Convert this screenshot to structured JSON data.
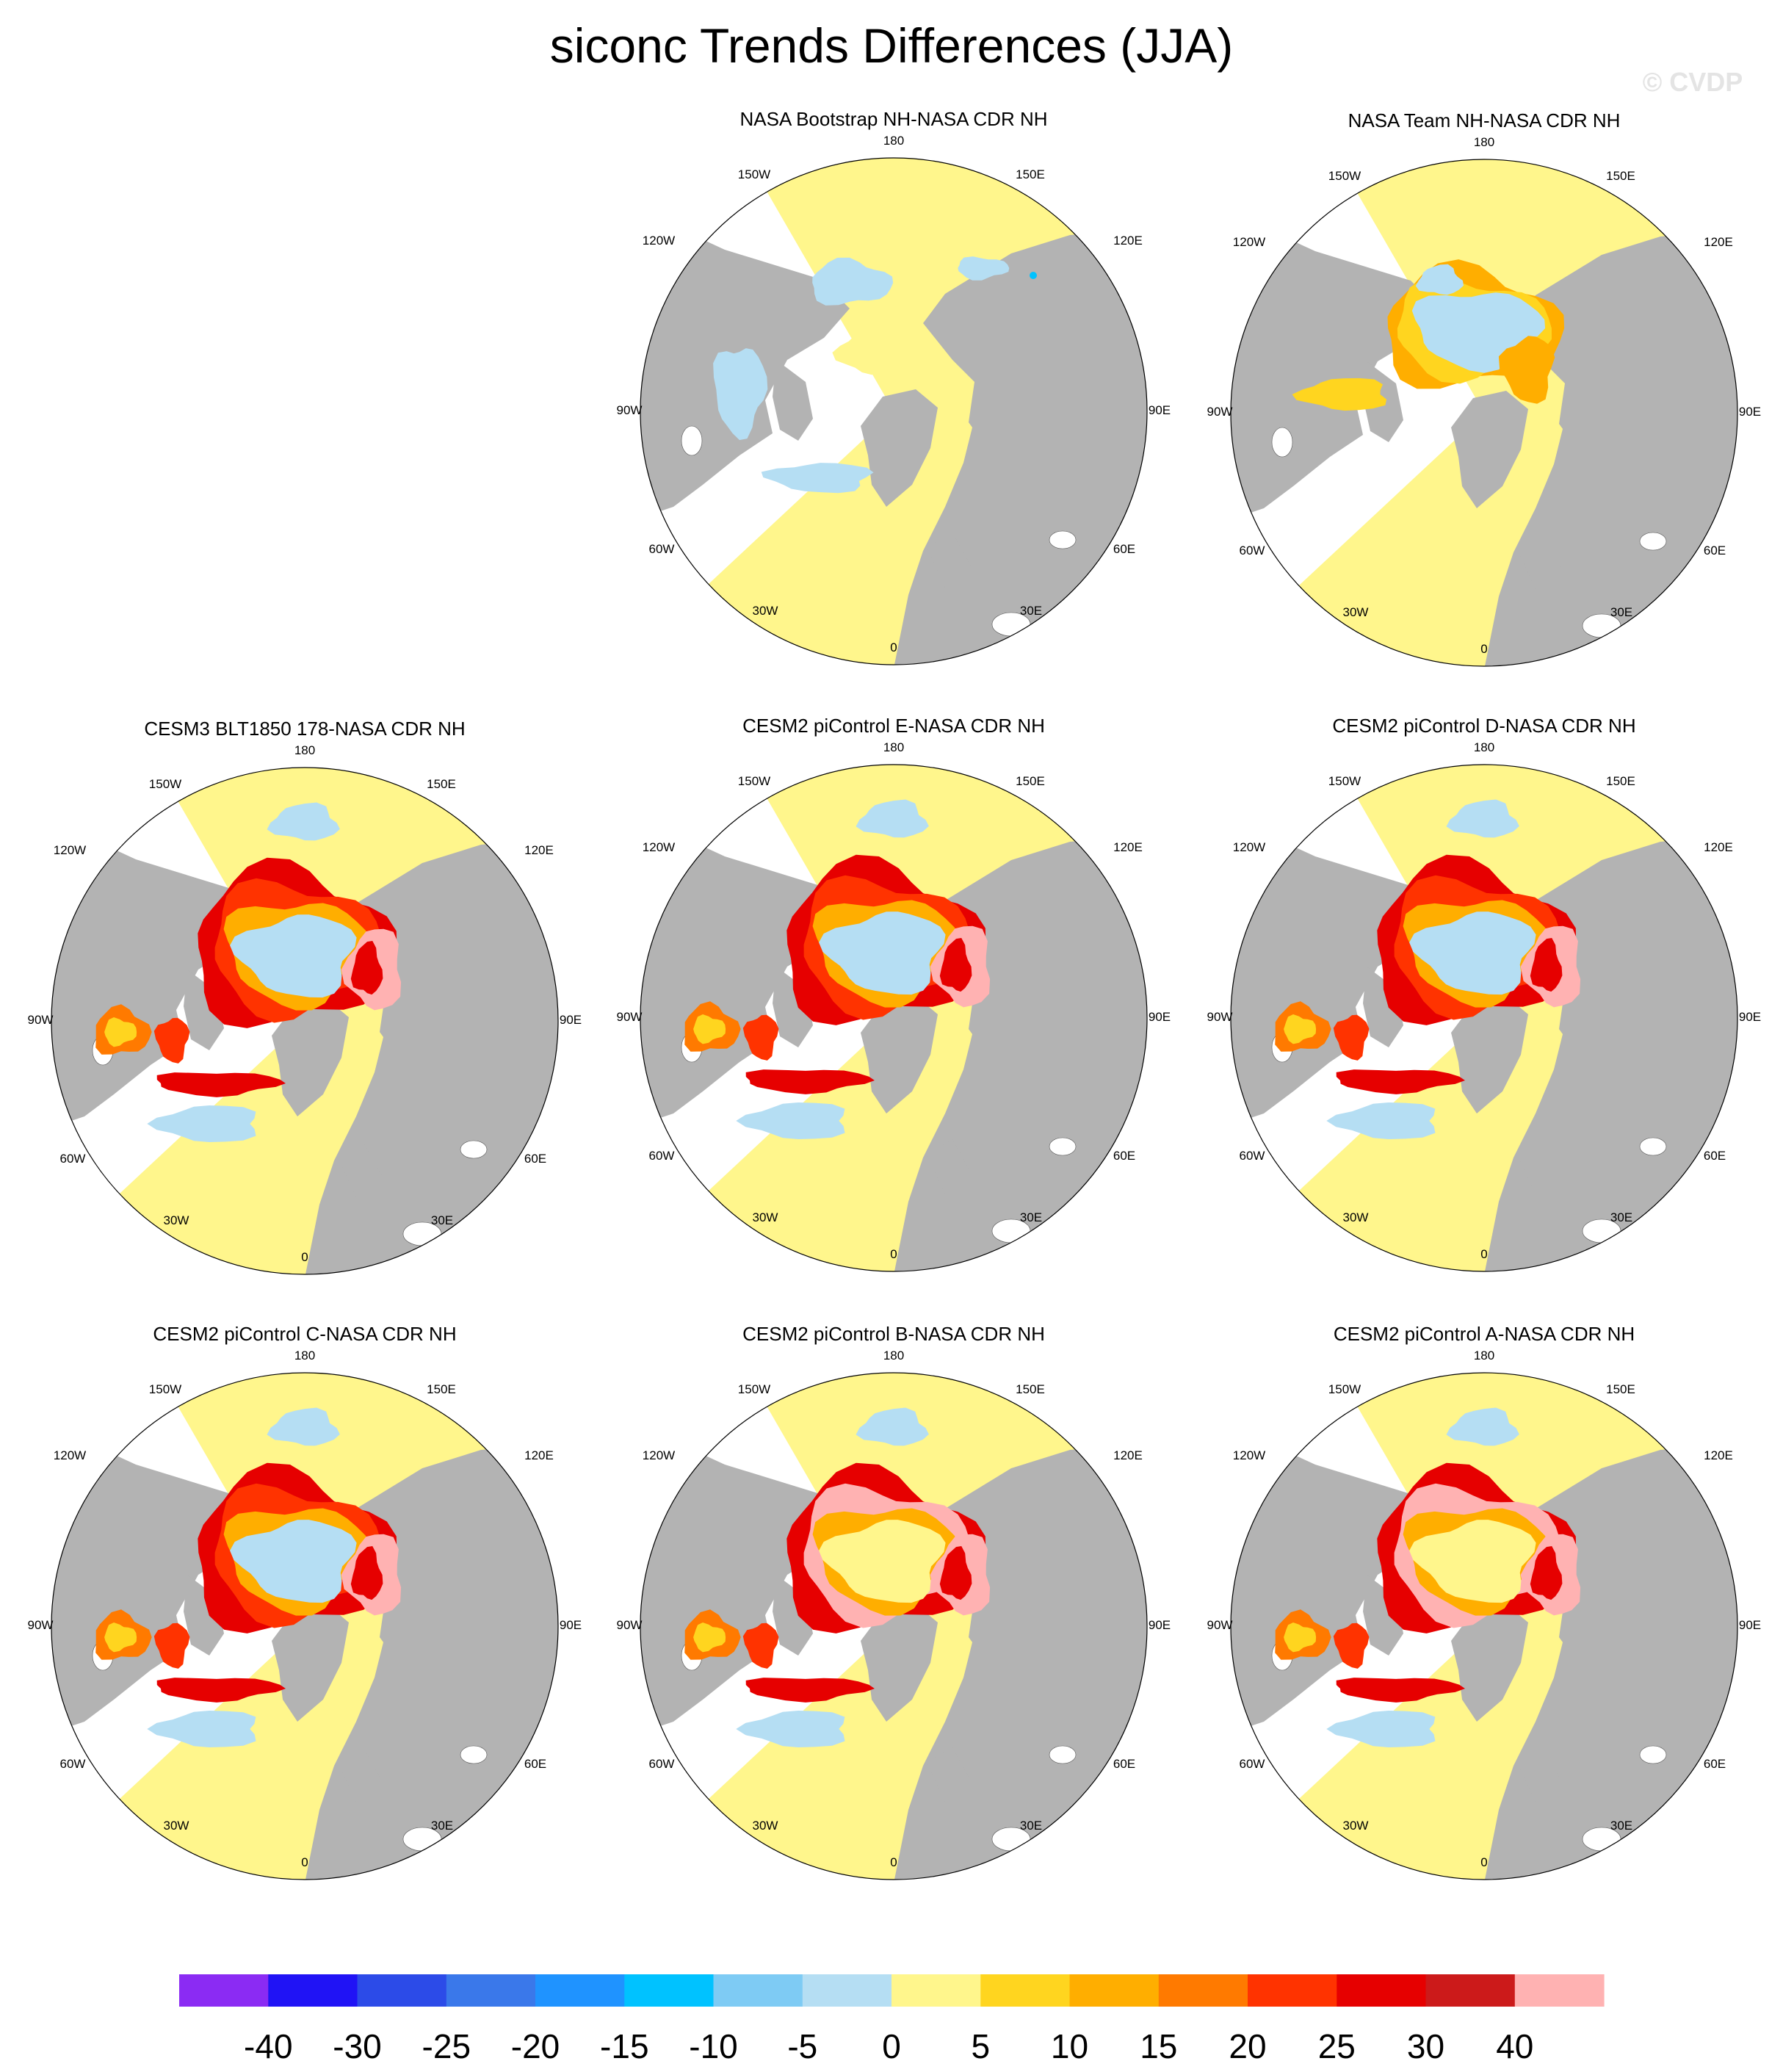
{
  "figure": {
    "title": "siconc Trends Differences (JJA)",
    "watermark": "© CVDP"
  },
  "panels": [
    {
      "title": "NASA Bootstrap NH-NASA CDR NH",
      "pattern": "bootstrap"
    },
    {
      "title": "NASA Team NH-NASA CDR NH",
      "pattern": "team"
    },
    {
      "title": "CESM3 BLT1850 178-NASA CDR NH",
      "pattern": "model"
    },
    {
      "title": "CESM2 piControl E-NASA CDR NH",
      "pattern": "model"
    },
    {
      "title": "CESM2 piControl D-NASA CDR NH",
      "pattern": "model"
    },
    {
      "title": "CESM2 piControl C-NASA CDR NH",
      "pattern": "model"
    },
    {
      "title": "CESM2 piControl B-NASA CDR NH",
      "pattern": "model_strong"
    },
    {
      "title": "CESM2 piControl A-NASA CDR NH",
      "pattern": "model_strong"
    }
  ],
  "longitude_labels": [
    "180",
    "150E",
    "120E",
    "90E",
    "60E",
    "30E",
    "0",
    "30W",
    "60W",
    "90W",
    "120W",
    "150W"
  ],
  "colorbar": {
    "colors": [
      "#8b2bf3",
      "#2013f5",
      "#2c4be8",
      "#3a78ea",
      "#1f93ff",
      "#00c2ff",
      "#7ecbf4",
      "#b5def3",
      "#fff68c",
      "#ffd51f",
      "#ffae00",
      "#ff7a00",
      "#ff3300",
      "#e60000",
      "#cc1a1a",
      "#ffb2b2"
    ],
    "labels": [
      "-40",
      "-30",
      "-25",
      "-20",
      "-15",
      "-10",
      "-5",
      "0",
      "5",
      "10",
      "15",
      "20",
      "25",
      "30",
      "40"
    ]
  },
  "map_colors": {
    "land": "#b3b3b3",
    "unshaded": "#ffffff",
    "near_zero_positive": "#fff68c",
    "near_zero_negative": "#b5def3"
  }
}
